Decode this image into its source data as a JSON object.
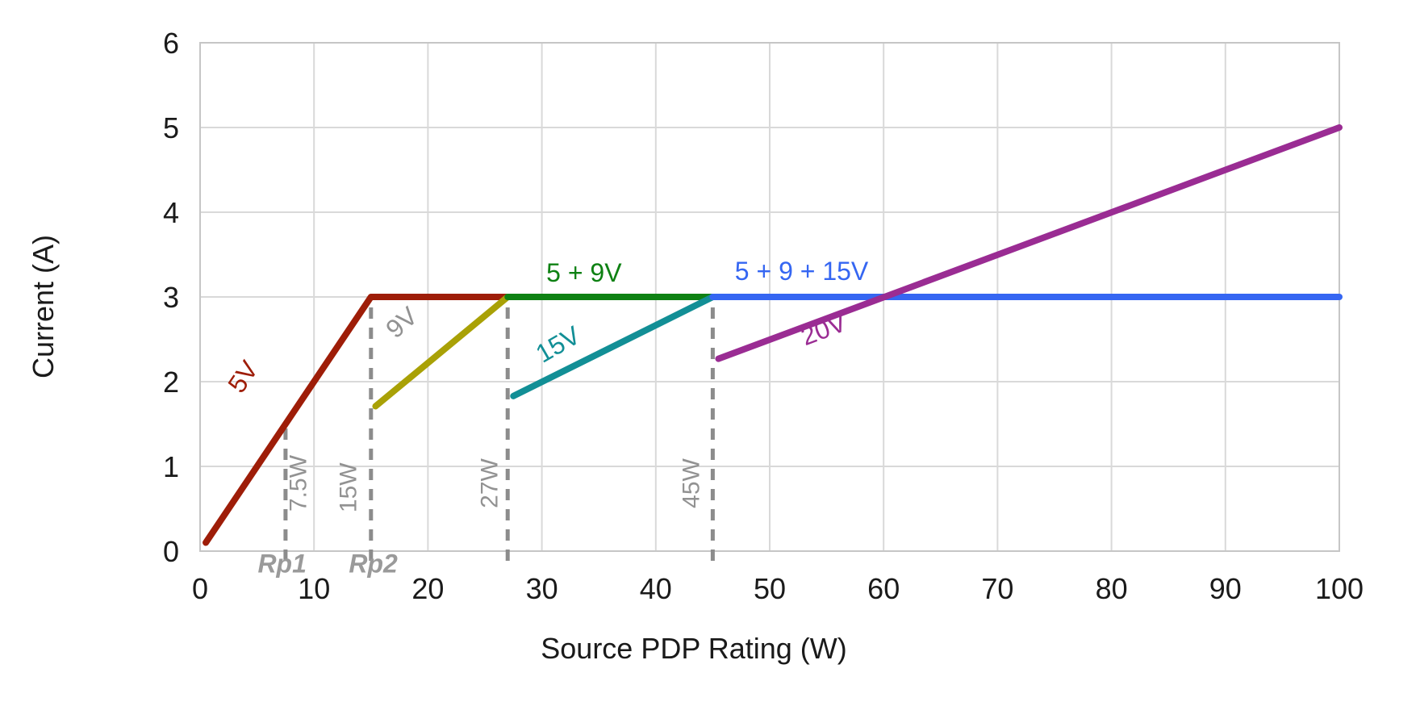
{
  "chart_data": {
    "type": "line",
    "title": "",
    "xlabel": "Source PDP Rating (W)",
    "ylabel": "Current (A)",
    "xlim": [
      0,
      100
    ],
    "ylim": [
      0,
      6
    ],
    "xticks": [
      0,
      10,
      20,
      30,
      40,
      50,
      60,
      70,
      80,
      90,
      100
    ],
    "yticks": [
      0,
      1,
      2,
      3,
      4,
      5,
      6
    ],
    "grid": true,
    "legend_position": "none",
    "colors": {
      "5V": "#9E1D08",
      "9V": "#A9A106",
      "5+9V": "#0E8113",
      "15V": "#128F96",
      "5+9+15V": "#3566F2",
      "20V": "#9A2C93",
      "guide_gray": "#8C8C8C",
      "label_gray": "#929292",
      "grid_gray": "#D9D9D9",
      "border_gray": "#C6C6C6",
      "text": "#1A1A1A"
    },
    "series": [
      {
        "name": "5V",
        "color": "#9E1D08",
        "points": [
          [
            0.5,
            0.1
          ],
          [
            15,
            3
          ],
          [
            27,
            3
          ]
        ]
      },
      {
        "name": "9V",
        "color": "#A9A106",
        "points": [
          [
            15.4,
            1.71
          ],
          [
            27,
            3
          ]
        ]
      },
      {
        "name": "5 + 9V",
        "color": "#0E8113",
        "points": [
          [
            27,
            3
          ],
          [
            45,
            3
          ]
        ]
      },
      {
        "name": "15V",
        "color": "#128F96",
        "points": [
          [
            27.5,
            1.83
          ],
          [
            45,
            3
          ]
        ]
      },
      {
        "name": "5 + 9 + 15V",
        "color": "#3566F2",
        "points": [
          [
            45,
            3
          ],
          [
            100,
            3
          ]
        ]
      },
      {
        "name": "20V",
        "color": "#9A2C93",
        "points": [
          [
            45.5,
            2.27
          ],
          [
            100,
            5
          ]
        ]
      }
    ],
    "series_labels": [
      {
        "text": "5V",
        "x": 4.4,
        "y": 2.0,
        "rotate": -56,
        "color": "#9E1D08",
        "size": 32,
        "italic": false
      },
      {
        "text": "9V",
        "x": 18.2,
        "y": 2.62,
        "rotate": -41,
        "color": "#929292",
        "size": 32,
        "italic": false
      },
      {
        "text": "15V",
        "x": 31.8,
        "y": 2.35,
        "rotate": -30,
        "color": "#128F96",
        "size": 32,
        "italic": false
      },
      {
        "text": "20V",
        "x": 55.0,
        "y": 2.52,
        "rotate": -21,
        "color": "#9A2C93",
        "size": 32,
        "italic": false
      },
      {
        "text": "5 + 9V",
        "x": 33.7,
        "y": 3.18,
        "rotate": 0,
        "color": "#0E8113",
        "size": 32,
        "italic": false
      },
      {
        "text": "5 + 9 + 15V",
        "x": 52.8,
        "y": 3.2,
        "rotate": 0,
        "color": "#3566F2",
        "size": 32,
        "italic": false
      }
    ],
    "guide_lines": [
      {
        "label": "7.5W",
        "x": 7.5,
        "y_top": 1.5
      },
      {
        "label": "15W",
        "x": 15,
        "y_top": 3
      },
      {
        "label": "27W",
        "x": 27,
        "y_top": 3
      },
      {
        "label": "45W",
        "x": 45,
        "y_top": 3
      }
    ],
    "guide_labels": [
      {
        "text": "7.5W",
        "x": 9.3,
        "y": 0.8,
        "rotate": -90,
        "color": "#929292",
        "size": 30,
        "italic": false
      },
      {
        "text": "15W",
        "x": 13.7,
        "y": 0.75,
        "rotate": -90,
        "color": "#929292",
        "size": 30,
        "italic": false
      },
      {
        "text": "27W",
        "x": 26.1,
        "y": 0.8,
        "rotate": -90,
        "color": "#929292",
        "size": 30,
        "italic": false
      },
      {
        "text": "45W",
        "x": 43.8,
        "y": 0.8,
        "rotate": -90,
        "color": "#929292",
        "size": 30,
        "italic": false
      }
    ],
    "axis_annotations": [
      {
        "text": "Rp1",
        "x": 7.2,
        "y": -0.25,
        "rotate": 0,
        "color": "#9A9A9A",
        "size": 32,
        "italic": true
      },
      {
        "text": "Rp2",
        "x": 15.2,
        "y": -0.25,
        "rotate": 0,
        "color": "#9A9A9A",
        "size": 32,
        "italic": true
      }
    ]
  }
}
